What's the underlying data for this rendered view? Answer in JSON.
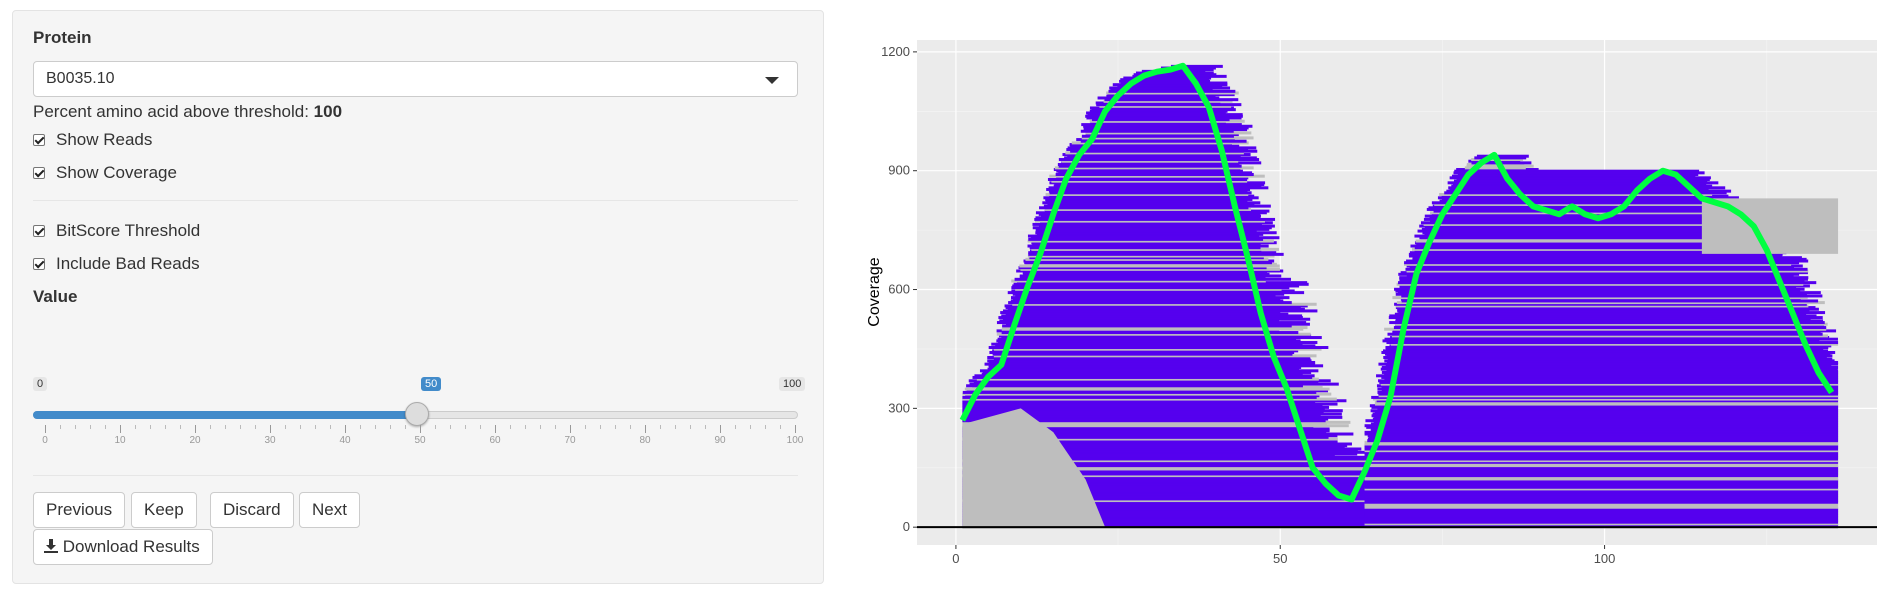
{
  "sidebar": {
    "protein_label": "Protein",
    "protein_value": "B0035.10",
    "percent_label": "Percent amino acid above threshold: ",
    "percent_value": "100",
    "show_reads": "Show Reads",
    "show_coverage": "Show Coverage",
    "bitscore": "BitScore Threshold",
    "bad_reads": "Include Bad Reads",
    "value_label": "Value",
    "slider": {
      "min": "0",
      "max": "100",
      "value": "50",
      "ticks": [
        "0",
        "10",
        "20",
        "30",
        "40",
        "50",
        "60",
        "70",
        "80",
        "90",
        "100"
      ]
    },
    "buttons": {
      "previous": "Previous",
      "keep": "Keep",
      "discard": "Discard",
      "next": "Next",
      "download": "Download Results"
    }
  },
  "chart_data": {
    "type": "line",
    "ylabel": "Coverage",
    "xlabel": "",
    "xlim": [
      -6,
      142
    ],
    "ylim": [
      -45,
      1230
    ],
    "x_ticks": [
      0,
      50,
      100
    ],
    "y_ticks": [
      0,
      300,
      600,
      900,
      1200
    ],
    "colors": {
      "coverage": "#00ff40",
      "reads_good": "#5500ee",
      "reads_bad": "#bebebe",
      "panel": "#ebebeb"
    },
    "series": [
      {
        "x": [
          1,
          3,
          5,
          7,
          9,
          11,
          13,
          15,
          17,
          19,
          21,
          23,
          25,
          27,
          29,
          31,
          33,
          35,
          37,
          39,
          41,
          43,
          45,
          47,
          49,
          51,
          53,
          55,
          57,
          59,
          61,
          63,
          65,
          67,
          69,
          71,
          73,
          75,
          77,
          79,
          81,
          83,
          85,
          87,
          89,
          91,
          93,
          95,
          97,
          99,
          101,
          103,
          105,
          107,
          109,
          111,
          113,
          115,
          117,
          119,
          121,
          123,
          125,
          127,
          129,
          131,
          133,
          135
        ],
        "y": [
          270,
          335,
          380,
          410,
          510,
          605,
          690,
          790,
          880,
          940,
          980,
          1050,
          1090,
          1120,
          1140,
          1150,
          1155,
          1165,
          1120,
          1060,
          950,
          810,
          680,
          540,
          430,
          350,
          250,
          150,
          110,
          80,
          70,
          140,
          220,
          330,
          500,
          640,
          720,
          790,
          840,
          890,
          920,
          940,
          880,
          840,
          810,
          800,
          790,
          810,
          790,
          780,
          790,
          810,
          850,
          880,
          900,
          890,
          860,
          830,
          820,
          810,
          790,
          760,
          700,
          620,
          540,
          460,
          390,
          340
        ]
      }
    ]
  }
}
